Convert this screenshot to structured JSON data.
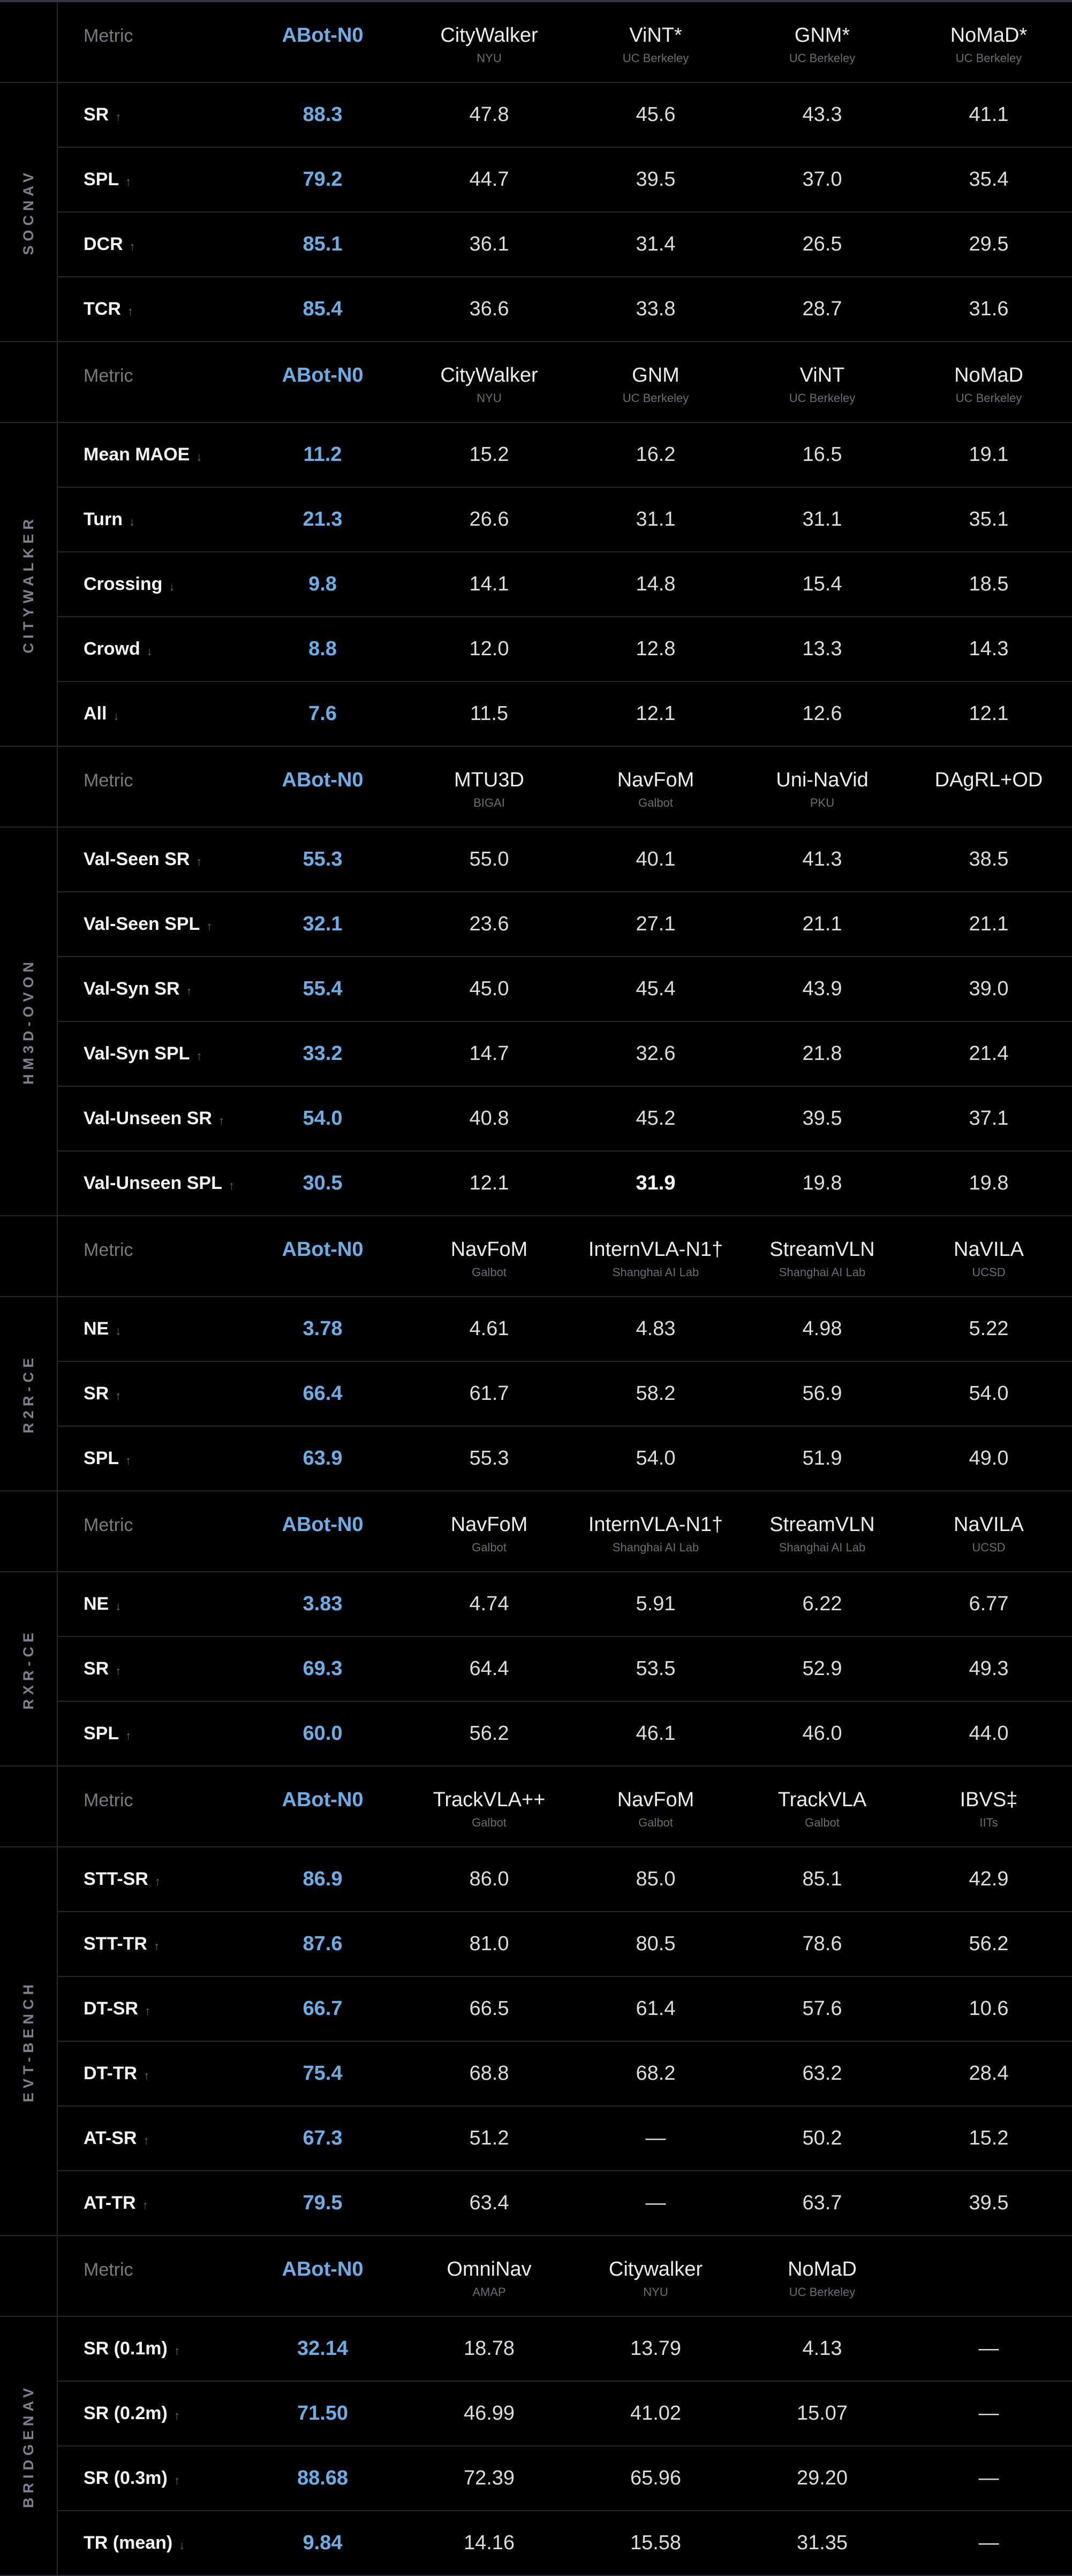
{
  "colors": {
    "accent": "#6aaee6",
    "background": "#000000",
    "divider": "#26262c"
  },
  "header_label": "Metric",
  "sections": [
    {
      "label": "SOCNAV",
      "columns": [
        {
          "name": "ABot-N0",
          "org": ""
        },
        {
          "name": "CityWalker",
          "org": "NYU"
        },
        {
          "name": "ViNT*",
          "org": "UC Berkeley"
        },
        {
          "name": "GNM*",
          "org": "UC Berkeley"
        },
        {
          "name": "NoMaD*",
          "org": "UC Berkeley"
        }
      ],
      "rows": [
        {
          "metric": "SR",
          "arrow": "arrow-up",
          "values": [
            "88.3",
            "47.8",
            "45.6",
            "43.3",
            "41.1"
          ]
        },
        {
          "metric": "SPL",
          "arrow": "arrow-up",
          "values": [
            "79.2",
            "44.7",
            "39.5",
            "37.0",
            "35.4"
          ]
        },
        {
          "metric": "DCR",
          "arrow": "arrow-up",
          "values": [
            "85.1",
            "36.1",
            "31.4",
            "26.5",
            "29.5"
          ]
        },
        {
          "metric": "TCR",
          "arrow": "arrow-up",
          "values": [
            "85.4",
            "36.6",
            "33.8",
            "28.7",
            "31.6"
          ]
        }
      ]
    },
    {
      "label": "CITYWALKER",
      "columns": [
        {
          "name": "ABot-N0",
          "org": ""
        },
        {
          "name": "CityWalker",
          "org": "NYU"
        },
        {
          "name": "GNM",
          "org": "UC Berkeley"
        },
        {
          "name": "ViNT",
          "org": "UC Berkeley"
        },
        {
          "name": "NoMaD",
          "org": "UC Berkeley"
        }
      ],
      "rows": [
        {
          "metric": "Mean MAOE",
          "arrow": "arrow-down",
          "values": [
            "11.2",
            "15.2",
            "16.2",
            "16.5",
            "19.1"
          ]
        },
        {
          "metric": "Turn",
          "arrow": "arrow-down",
          "values": [
            "21.3",
            "26.6",
            "31.1",
            "31.1",
            "35.1"
          ]
        },
        {
          "metric": "Crossing",
          "arrow": "arrow-down",
          "values": [
            "9.8",
            "14.1",
            "14.8",
            "15.4",
            "18.5"
          ]
        },
        {
          "metric": "Crowd",
          "arrow": "arrow-down",
          "values": [
            "8.8",
            "12.0",
            "12.8",
            "13.3",
            "14.3"
          ]
        },
        {
          "metric": "All",
          "arrow": "arrow-down",
          "values": [
            "7.6",
            "11.5",
            "12.1",
            "12.6",
            "12.1"
          ]
        }
      ]
    },
    {
      "label": "HM3D-OVON",
      "columns": [
        {
          "name": "ABot-N0",
          "org": ""
        },
        {
          "name": "MTU3D",
          "org": "BIGAI"
        },
        {
          "name": "NavFoM",
          "org": "Galbot"
        },
        {
          "name": "Uni-NaVid",
          "org": "PKU"
        },
        {
          "name": "DAgRL+OD",
          "org": ""
        }
      ],
      "rows": [
        {
          "metric": "Val-Seen SR",
          "arrow": "arrow-up",
          "values": [
            "55.3",
            "55.0",
            "40.1",
            "41.3",
            "38.5"
          ]
        },
        {
          "metric": "Val-Seen SPL",
          "arrow": "arrow-up",
          "values": [
            "32.1",
            "23.6",
            "27.1",
            "21.1",
            "21.1"
          ]
        },
        {
          "metric": "Val-Syn SR",
          "arrow": "arrow-up",
          "values": [
            "55.4",
            "45.0",
            "45.4",
            "43.9",
            "39.0"
          ]
        },
        {
          "metric": "Val-Syn SPL",
          "arrow": "arrow-up",
          "values": [
            "33.2",
            "14.7",
            "32.6",
            "21.8",
            "21.4"
          ]
        },
        {
          "metric": "Val-Unseen SR",
          "arrow": "arrow-up",
          "values": [
            "54.0",
            "40.8",
            "45.2",
            "39.5",
            "37.1"
          ]
        },
        {
          "metric": "Val-Unseen SPL",
          "arrow": "arrow-up",
          "values": [
            "30.5",
            "12.1",
            "31.9",
            "19.8",
            "19.8"
          ],
          "best_index": 2
        }
      ]
    },
    {
      "label": "R2R-CE",
      "columns": [
        {
          "name": "ABot-N0",
          "org": ""
        },
        {
          "name": "NavFoM",
          "org": "Galbot"
        },
        {
          "name": "InternVLA-N1†",
          "org": "Shanghai AI Lab"
        },
        {
          "name": "StreamVLN",
          "org": "Shanghai AI Lab"
        },
        {
          "name": "NaVILA",
          "org": "UCSD"
        }
      ],
      "rows": [
        {
          "metric": "NE",
          "arrow": "arrow-down",
          "values": [
            "3.78",
            "4.61",
            "4.83",
            "4.98",
            "5.22"
          ]
        },
        {
          "metric": "SR",
          "arrow": "arrow-up",
          "values": [
            "66.4",
            "61.7",
            "58.2",
            "56.9",
            "54.0"
          ]
        },
        {
          "metric": "SPL",
          "arrow": "arrow-up",
          "values": [
            "63.9",
            "55.3",
            "54.0",
            "51.9",
            "49.0"
          ]
        }
      ]
    },
    {
      "label": "RXR-CE",
      "columns": [
        {
          "name": "ABot-N0",
          "org": ""
        },
        {
          "name": "NavFoM",
          "org": "Galbot"
        },
        {
          "name": "InternVLA-N1†",
          "org": "Shanghai AI Lab"
        },
        {
          "name": "StreamVLN",
          "org": "Shanghai AI Lab"
        },
        {
          "name": "NaVILA",
          "org": "UCSD"
        }
      ],
      "rows": [
        {
          "metric": "NE",
          "arrow": "arrow-down",
          "values": [
            "3.83",
            "4.74",
            "5.91",
            "6.22",
            "6.77"
          ]
        },
        {
          "metric": "SR",
          "arrow": "arrow-up",
          "values": [
            "69.3",
            "64.4",
            "53.5",
            "52.9",
            "49.3"
          ]
        },
        {
          "metric": "SPL",
          "arrow": "arrow-up",
          "values": [
            "60.0",
            "56.2",
            "46.1",
            "46.0",
            "44.0"
          ]
        }
      ]
    },
    {
      "label": "EVT-BENCH",
      "columns": [
        {
          "name": "ABot-N0",
          "org": ""
        },
        {
          "name": "TrackVLA++",
          "org": "Galbot"
        },
        {
          "name": "NavFoM",
          "org": "Galbot"
        },
        {
          "name": "TrackVLA",
          "org": "Galbot"
        },
        {
          "name": "IBVS‡",
          "org": "IITs"
        }
      ],
      "rows": [
        {
          "metric": "STT-SR",
          "arrow": "arrow-up",
          "values": [
            "86.9",
            "86.0",
            "85.0",
            "85.1",
            "42.9"
          ]
        },
        {
          "metric": "STT-TR",
          "arrow": "arrow-up",
          "values": [
            "87.6",
            "81.0",
            "80.5",
            "78.6",
            "56.2"
          ]
        },
        {
          "metric": "DT-SR",
          "arrow": "arrow-up",
          "values": [
            "66.7",
            "66.5",
            "61.4",
            "57.6",
            "10.6"
          ]
        },
        {
          "metric": "DT-TR",
          "arrow": "arrow-up",
          "values": [
            "75.4",
            "68.8",
            "68.2",
            "63.2",
            "28.4"
          ]
        },
        {
          "metric": "AT-SR",
          "arrow": "arrow-up",
          "values": [
            "67.3",
            "51.2",
            "—",
            "50.2",
            "15.2"
          ]
        },
        {
          "metric": "AT-TR",
          "arrow": "arrow-up",
          "values": [
            "79.5",
            "63.4",
            "—",
            "63.7",
            "39.5"
          ]
        }
      ]
    },
    {
      "label": "BRIDGENAV",
      "columns": [
        {
          "name": "ABot-N0",
          "org": ""
        },
        {
          "name": "OmniNav",
          "org": "AMAP"
        },
        {
          "name": "Citywalker",
          "org": "NYU"
        },
        {
          "name": "NoMaD",
          "org": "UC Berkeley"
        },
        {
          "name": "",
          "org": ""
        }
      ],
      "rows": [
        {
          "metric": "SR (0.1m)",
          "arrow": "arrow-up",
          "values": [
            "32.14",
            "18.78",
            "13.79",
            "4.13",
            "—"
          ]
        },
        {
          "metric": "SR (0.2m)",
          "arrow": "arrow-up",
          "values": [
            "71.50",
            "46.99",
            "41.02",
            "15.07",
            "—"
          ]
        },
        {
          "metric": "SR (0.3m)",
          "arrow": "arrow-up",
          "values": [
            "88.68",
            "72.39",
            "65.96",
            "29.20",
            "—"
          ]
        },
        {
          "metric": "TR (mean)",
          "arrow": "arrow-down",
          "values": [
            "9.84",
            "14.16",
            "15.58",
            "31.35",
            "—"
          ]
        }
      ]
    }
  ]
}
